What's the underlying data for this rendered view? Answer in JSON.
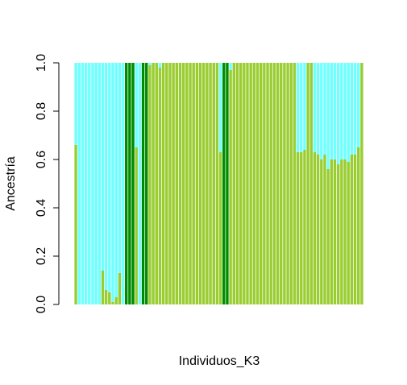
{
  "chart_data": {
    "type": "bar",
    "stacked": true,
    "xlabel": "Individuos_K3",
    "ylabel": "Ancestría",
    "ylim": [
      0,
      1
    ],
    "yticks": [
      "0.0",
      "0.2",
      "0.4",
      "0.6",
      "0.8",
      "1.0"
    ],
    "colors": {
      "cluster1": "#9ACD32",
      "cluster2": "#008B00",
      "cluster3": "#6FFFFF"
    },
    "series": [
      {
        "key": "cluster1",
        "values": [
          0.66,
          0,
          0,
          0,
          0,
          0,
          0,
          0,
          0.14,
          0.06,
          0.05,
          0.01,
          0.03,
          0.13,
          0,
          0,
          0,
          0,
          0.65,
          0,
          0,
          0,
          0.99,
          1,
          1,
          0.98,
          1,
          1,
          1,
          1,
          1,
          1,
          1,
          1,
          1,
          1,
          1,
          1,
          1,
          1,
          1,
          1,
          1,
          0.63,
          0,
          0,
          0.97,
          1,
          1,
          1,
          1,
          1,
          1,
          1,
          1,
          1,
          1,
          1,
          1,
          1,
          1,
          1,
          1,
          1,
          1,
          1,
          0.63,
          0.63,
          0.64,
          1,
          1,
          0.63,
          0.62,
          0.6,
          0.62,
          0.56,
          0.6,
          0.6,
          0.58,
          0.6,
          0.6,
          0.59,
          0.62,
          0.62,
          0.65,
          1
        ]
      },
      {
        "key": "cluster2",
        "values": [
          0,
          0,
          0,
          0,
          0,
          0,
          0,
          0,
          0,
          0,
          0,
          0,
          0,
          0,
          0,
          1,
          1,
          1,
          0,
          0,
          1,
          1,
          0,
          0,
          0,
          0,
          0,
          0,
          0,
          0,
          0,
          0,
          0,
          0,
          0,
          0,
          0,
          0,
          0,
          0,
          0,
          0,
          0,
          0,
          1,
          1,
          0,
          0,
          0,
          0,
          0,
          0,
          0,
          0,
          0,
          0,
          0,
          0,
          0,
          0,
          0,
          0,
          0,
          0,
          0,
          0,
          0,
          0,
          0,
          0,
          0,
          0,
          0,
          0,
          0,
          0,
          0,
          0,
          0,
          0,
          0,
          0,
          0,
          0,
          0,
          0
        ]
      },
      {
        "key": "cluster3",
        "values": [
          0.34,
          1,
          1,
          1,
          1,
          1,
          1,
          1,
          0.86,
          0.94,
          0.95,
          0.99,
          0.97,
          0.87,
          1,
          0,
          0,
          0,
          0.35,
          1,
          0,
          0,
          0.01,
          0,
          0,
          0.02,
          0,
          0,
          0,
          0,
          0,
          0,
          0,
          0,
          0,
          0,
          0,
          0,
          0,
          0,
          0,
          0,
          0,
          0.37,
          0,
          0,
          0.03,
          0,
          0,
          0,
          0,
          0,
          0,
          0,
          0,
          0,
          0,
          0,
          0,
          0,
          0,
          0,
          0,
          0,
          0,
          0,
          0.37,
          0.37,
          0.36,
          0,
          0,
          0.37,
          0.38,
          0.4,
          0.38,
          0.44,
          0.4,
          0.4,
          0.42,
          0.4,
          0.4,
          0.41,
          0.38,
          0.38,
          0.35,
          0
        ]
      }
    ]
  }
}
